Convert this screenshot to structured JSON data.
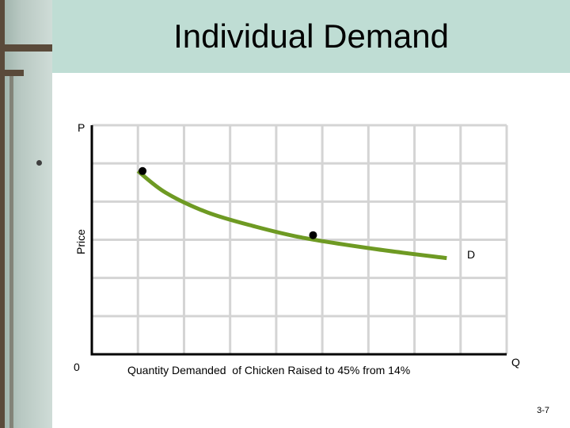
{
  "slide": {
    "title": "Individual Demand",
    "page_number": "3-7"
  },
  "colors": {
    "curve": "#6e9a23",
    "grid": "#d4d4d4",
    "axis": "#000000",
    "point": "#000000",
    "title_bar": "#bfddd4"
  },
  "chart_data": {
    "type": "line",
    "title": "",
    "xlabel": "Quantity Demanded  of Chicken Raised to 45% from 14%",
    "ylabel": "Price",
    "y_axis_letter": "P",
    "x_axis_letter": "Q",
    "origin_label": "0",
    "grid": true,
    "series": [
      {
        "name": "D",
        "x": [
          1.0,
          1.6,
          2.5,
          3.5,
          4.6,
          6.2,
          7.7
        ],
        "y": [
          4.0,
          3.53,
          3.1,
          2.8,
          2.54,
          2.29,
          2.1
        ]
      }
    ],
    "points": [
      {
        "x": 1.1,
        "y": 4.0
      },
      {
        "x": 4.8,
        "y": 2.6
      }
    ],
    "xlim": [
      0,
      9
    ],
    "ylim": [
      0,
      5
    ]
  }
}
